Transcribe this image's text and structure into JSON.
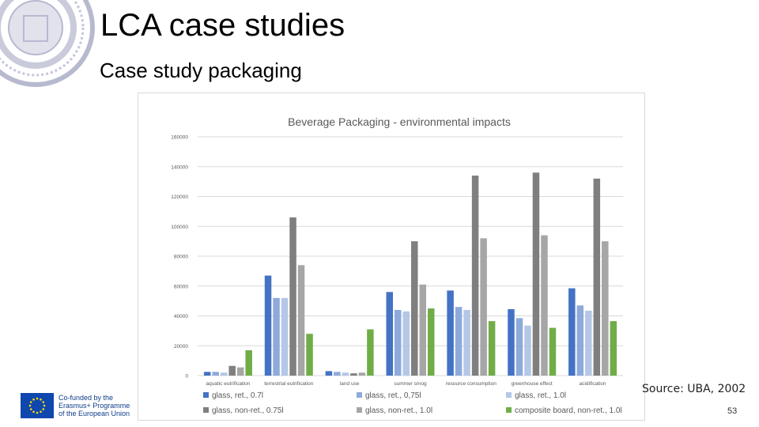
{
  "slide": {
    "title": "LCA case studies",
    "subtitle": "Case study packaging",
    "source": "Source: UBA, 2002",
    "page_number": "53"
  },
  "logo": {
    "line1": "Co-funded by the",
    "line2": "Erasmus+ Programme",
    "line3": "of the European Union"
  },
  "chart_data": {
    "type": "bar",
    "title": "Beverage Packaging - environmental impacts",
    "xlabel": "",
    "ylabel": "",
    "ylim": [
      0,
      160000
    ],
    "yticks": [
      "0",
      "20000",
      "40000",
      "60000",
      "80000",
      "100000",
      "120000",
      "140000",
      "160000"
    ],
    "grid": true,
    "legend_position": "bottom",
    "categories": [
      "aquatic eutrification",
      "terrestrial eutrification",
      "land use",
      "summer smog",
      "resource consumption",
      "greenhouse effect",
      "acidification"
    ],
    "series": [
      {
        "name": "glass, ret., 0.7l",
        "color": "#4472c4",
        "values": [
          2500,
          67000,
          3000,
          56000,
          57000,
          44500,
          58500
        ]
      },
      {
        "name": "glass, ret., 0,75l",
        "color": "#8eaadb",
        "values": [
          2500,
          52000,
          2500,
          44000,
          46000,
          38500,
          47000
        ]
      },
      {
        "name": "glass, ret., 1.0l",
        "color": "#b4c7e7",
        "values": [
          2000,
          52000,
          2000,
          43000,
          44000,
          33500,
          43500
        ]
      },
      {
        "name": "glass, non-ret., 0.75l",
        "color": "#7f7f7f",
        "values": [
          6500,
          106000,
          1500,
          90000,
          134000,
          136000,
          132000
        ]
      },
      {
        "name": "glass, non-ret., 1.0l",
        "color": "#a6a6a6",
        "values": [
          5500,
          74000,
          2000,
          61000,
          92000,
          94000,
          90000
        ]
      },
      {
        "name": "composite board, non-ret., 1.0l",
        "color": "#70ad47",
        "values": [
          17000,
          28000,
          31000,
          45000,
          36500,
          32000,
          36500
        ]
      }
    ]
  }
}
